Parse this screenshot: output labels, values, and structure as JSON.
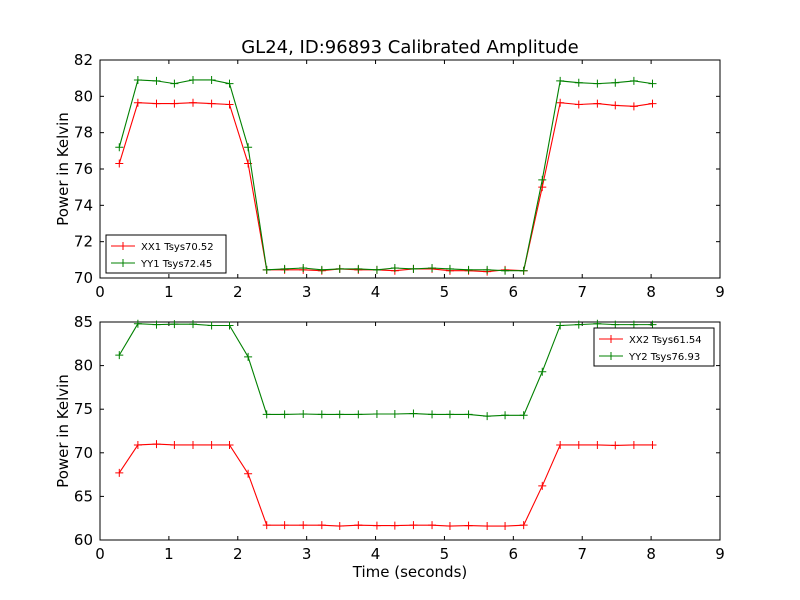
{
  "figure_title": "GL24, ID:96893 Calibrated Amplitude",
  "colors": {
    "xx": "#ff0000",
    "yy": "#008000",
    "axis": "#000000",
    "background": "#ffffff"
  },
  "chart_data": [
    {
      "type": "line",
      "ylabel": "Power in Kelvin",
      "xlabel": "",
      "xlim": [
        0,
        9
      ],
      "ylim": [
        70,
        82
      ],
      "xticks": [
        "0",
        "1",
        "2",
        "3",
        "4",
        "5",
        "6",
        "7",
        "8",
        "9"
      ],
      "yticks": [
        "70",
        "72",
        "74",
        "76",
        "78",
        "80",
        "82"
      ],
      "x": [
        0.28,
        0.55,
        0.82,
        1.08,
        1.35,
        1.62,
        1.88,
        2.15,
        2.42,
        2.68,
        2.95,
        3.22,
        3.48,
        3.75,
        4.02,
        4.28,
        4.55,
        4.82,
        5.08,
        5.35,
        5.62,
        5.88,
        6.15,
        6.42,
        6.68,
        6.95,
        7.22,
        7.48,
        7.75,
        8.02
      ],
      "legend": "lower-left",
      "series": [
        {
          "name": "XX1 Tsys70.52",
          "color": "#ff0000",
          "values": [
            76.3,
            79.65,
            79.6,
            79.6,
            79.65,
            79.6,
            79.55,
            76.3,
            70.45,
            70.45,
            70.45,
            70.4,
            70.5,
            70.45,
            70.45,
            70.4,
            70.5,
            70.5,
            70.4,
            70.4,
            70.35,
            70.45,
            70.4,
            75.0,
            79.65,
            79.55,
            79.6,
            79.5,
            79.45,
            79.6
          ]
        },
        {
          "name": "YY1 Tsys72.45",
          "color": "#008000",
          "values": [
            77.2,
            80.9,
            80.85,
            80.7,
            80.9,
            80.9,
            80.7,
            77.2,
            70.45,
            70.5,
            70.55,
            70.45,
            70.5,
            70.5,
            70.45,
            70.55,
            70.5,
            70.55,
            70.5,
            70.45,
            70.45,
            70.4,
            70.4,
            75.4,
            80.85,
            80.75,
            80.7,
            80.75,
            80.85,
            80.7
          ]
        }
      ]
    },
    {
      "type": "line",
      "ylabel": "Power in Kelvin",
      "xlabel": "Time (seconds)",
      "xlim": [
        0,
        9
      ],
      "ylim": [
        60,
        85
      ],
      "xticks": [
        "0",
        "1",
        "2",
        "3",
        "4",
        "5",
        "6",
        "7",
        "8",
        "9"
      ],
      "yticks": [
        "60",
        "65",
        "70",
        "75",
        "80",
        "85"
      ],
      "x": [
        0.28,
        0.55,
        0.82,
        1.08,
        1.35,
        1.62,
        1.88,
        2.15,
        2.42,
        2.68,
        2.95,
        3.22,
        3.48,
        3.75,
        4.02,
        4.28,
        4.55,
        4.82,
        5.08,
        5.35,
        5.62,
        5.88,
        6.15,
        6.42,
        6.68,
        6.95,
        7.22,
        7.48,
        7.75,
        8.02
      ],
      "legend": "upper-right",
      "series": [
        {
          "name": "XX2 Tsys61.54",
          "color": "#ff0000",
          "values": [
            67.7,
            70.9,
            71.0,
            70.9,
            70.9,
            70.9,
            70.9,
            67.6,
            61.7,
            61.7,
            61.7,
            61.7,
            61.6,
            61.7,
            61.65,
            61.65,
            61.7,
            61.7,
            61.6,
            61.65,
            61.6,
            61.6,
            61.7,
            66.2,
            70.9,
            70.9,
            70.9,
            70.85,
            70.9,
            70.9
          ]
        },
        {
          "name": "YY2 Tsys76.93",
          "color": "#008000",
          "values": [
            81.2,
            84.8,
            84.7,
            84.75,
            84.75,
            84.6,
            84.6,
            81.0,
            74.4,
            74.4,
            74.45,
            74.4,
            74.4,
            74.4,
            74.45,
            74.45,
            74.5,
            74.4,
            74.4,
            74.4,
            74.2,
            74.3,
            74.3,
            79.3,
            84.6,
            84.7,
            84.8,
            84.7,
            84.7,
            84.7
          ]
        }
      ]
    }
  ]
}
